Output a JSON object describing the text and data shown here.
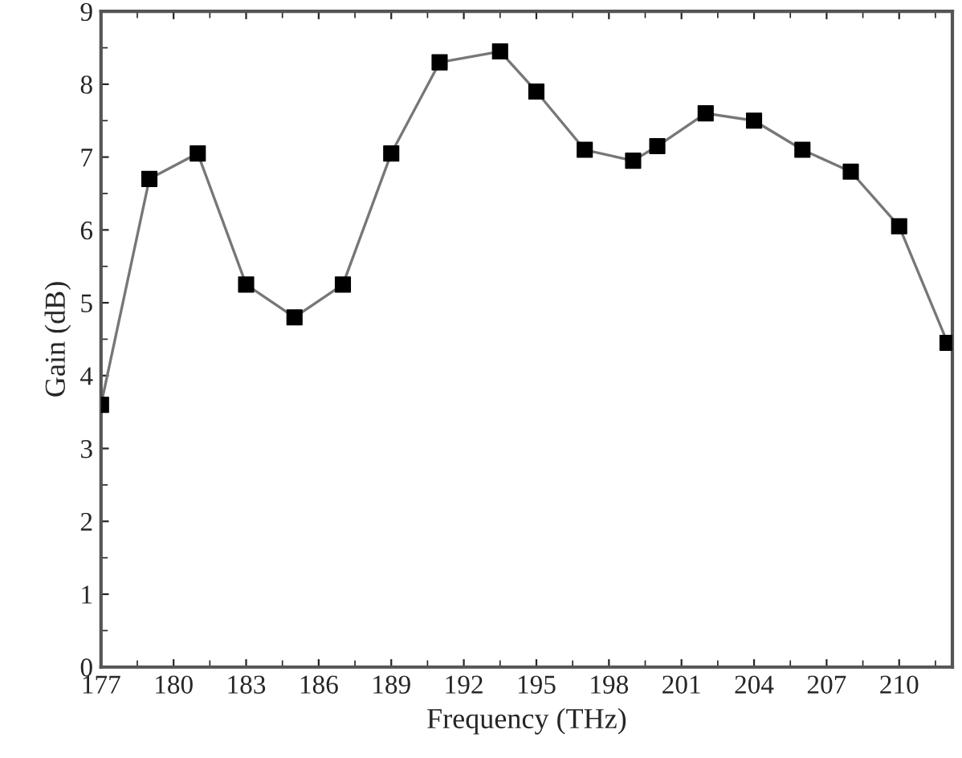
{
  "chart_data": {
    "type": "line",
    "xlabel": "Frequency (THz)",
    "ylabel": "Gain (dB)",
    "x": [
      177,
      179,
      181,
      183,
      185,
      187,
      189,
      191,
      193.5,
      195,
      197,
      199,
      200,
      202,
      204,
      206,
      208,
      210,
      212
    ],
    "series": [
      {
        "color": "#000000",
        "values": [
          3.6,
          6.7,
          7.05,
          5.25,
          4.8,
          5.25,
          7.05,
          8.3,
          8.45,
          7.9,
          7.1,
          6.95,
          7.15,
          7.6,
          7.5,
          7.1,
          6.8,
          6.05,
          4.45
        ]
      }
    ],
    "xlim": [
      177,
      212.2
    ],
    "xticks": [
      177,
      180,
      183,
      186,
      189,
      192,
      195,
      198,
      201,
      204,
      207,
      210
    ],
    "ylim": [
      0,
      9
    ],
    "yticks": [
      0,
      1,
      2,
      3,
      4,
      5,
      6,
      7,
      8,
      9
    ],
    "grid": false,
    "marker": "square",
    "line_style": "solid"
  }
}
